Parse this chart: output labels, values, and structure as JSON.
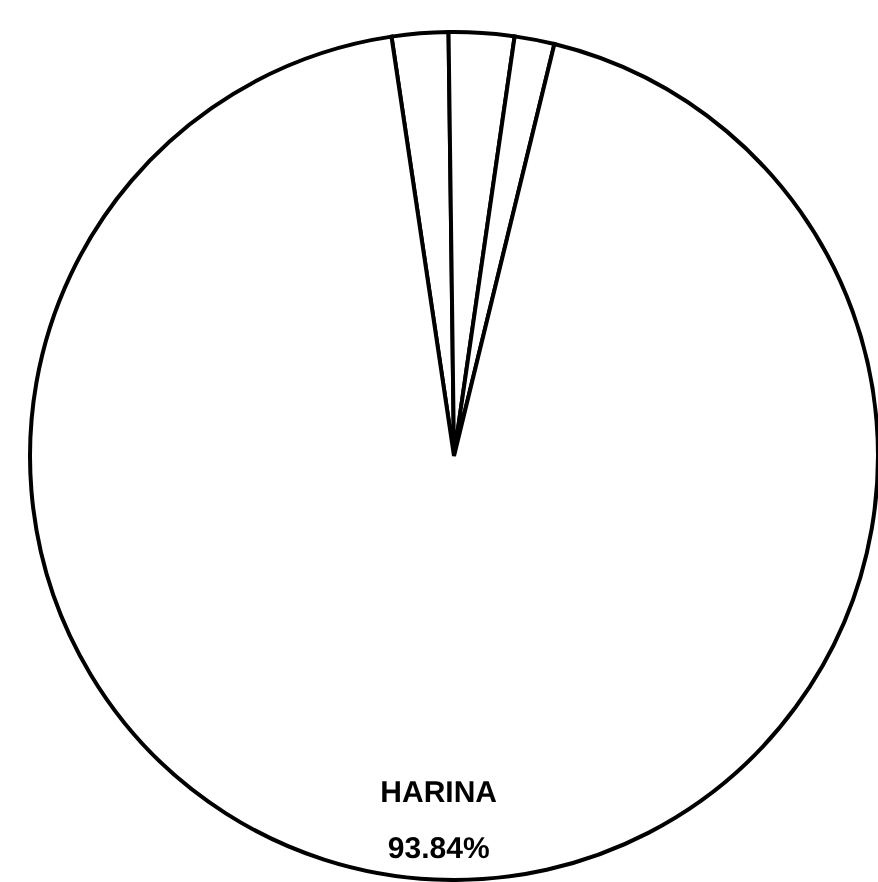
{
  "chart_data": {
    "type": "pie",
    "categories": [
      null,
      null,
      null,
      "HARINA"
    ],
    "values": [
      2.15,
      2.49,
      1.52,
      93.84
    ],
    "value_labels": [
      null,
      null,
      null,
      "93.84%"
    ],
    "colors": [
      "#ffffff",
      "#ffffff",
      "#ffffff",
      "#ffffff"
    ]
  }
}
